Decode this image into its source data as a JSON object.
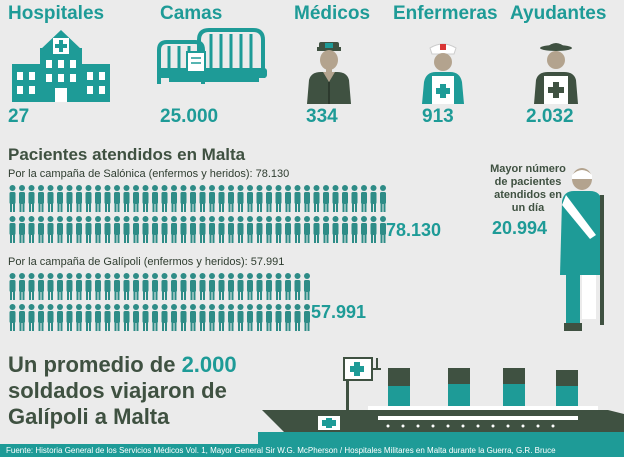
{
  "categories": [
    {
      "label": "Hospitales",
      "value": "27",
      "icon": "hospital-icon"
    },
    {
      "label": "Camas",
      "value": "25.000",
      "icon": "bed-icon"
    },
    {
      "label": "Médicos",
      "value": "334",
      "icon": "doctor-icon"
    },
    {
      "label": "Enfermeras",
      "value": "913",
      "icon": "nurse-icon"
    },
    {
      "label": "Ayudantes",
      "value": "2.032",
      "icon": "orderly-icon"
    }
  ],
  "patients": {
    "title": "Pacientes atendidos en Malta",
    "salonica_label": "Por la campaña de Salónica (enfermos y heridos): 78.130",
    "salonica_value": "78.130",
    "gallipoli_label": "Por la campaña de Galípoli (enfermos y heridos): 57.991",
    "gallipoli_value": "57.991"
  },
  "max_day": {
    "label": "Mayor número de pacientes atendidos en un día",
    "value": "20.994"
  },
  "promo": {
    "part1": "Un promedio de ",
    "highlight": "2.000",
    "part2": "soldados viajaron de",
    "part3": "Galípoli a Malta"
  },
  "source": "Fuente: Historia General de los Servicios Médicos Vol. 1, Mayor General Sir W.G. McPherson / Hospitales Militares en Malta durante la Guerra, G.R. Bruce",
  "colors": {
    "teal": "#1e9b97",
    "dark": "#3f5141",
    "soldier": "#2e8c87",
    "background": "#ebebeb"
  }
}
